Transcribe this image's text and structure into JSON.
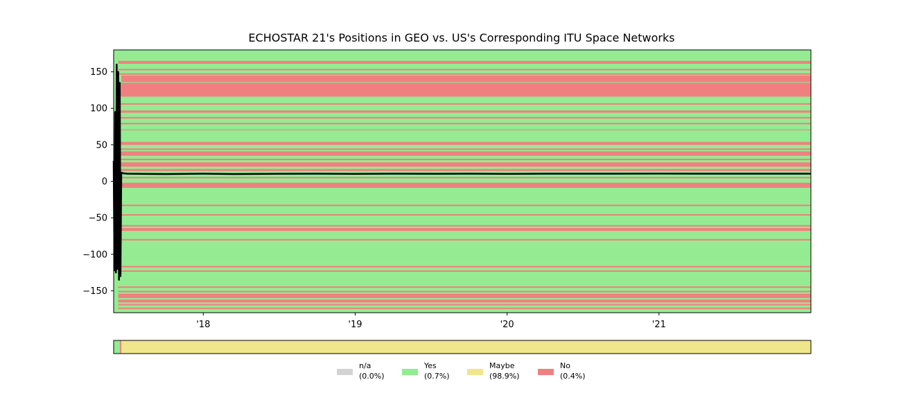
{
  "chart_data": {
    "type": "area",
    "title": "ECHOSTAR 21's Positions in GEO vs. US's Corresponding ITU Space Networks",
    "xlabel": "",
    "ylabel": "",
    "xlim": [
      2017.41,
      2022.0
    ],
    "ylim": [
      -180,
      180
    ],
    "x_ticks": [
      {
        "value": 2018,
        "label": "'18"
      },
      {
        "value": 2019,
        "label": "'19"
      },
      {
        "value": 2020,
        "label": "'20"
      },
      {
        "value": 2021,
        "label": "'21"
      }
    ],
    "y_ticks": [
      {
        "value": 150,
        "label": "150"
      },
      {
        "value": 100,
        "label": "100"
      },
      {
        "value": 50,
        "label": "50"
      },
      {
        "value": 0,
        "label": "0"
      },
      {
        "value": -50,
        "label": "−50"
      },
      {
        "value": -100,
        "label": "−100"
      },
      {
        "value": -150,
        "label": "−150"
      }
    ],
    "colors": {
      "na": "#d3d3d3",
      "yes": "#90ee90",
      "maybe": "#f0e68c",
      "no": "#f08080",
      "position_line": "#000000"
    },
    "background_status": "yes",
    "longitude_bands_no": [
      {
        "lon": [
          161,
          165
        ]
      },
      {
        "lon": [
          152,
          154
        ]
      },
      {
        "lon": [
          146,
          148
        ]
      },
      {
        "lon": [
          136,
          145
        ],
        "x_start": 2017.46
      },
      {
        "lon": [
          116,
          135
        ]
      },
      {
        "lon": [
          105,
          107
        ]
      },
      {
        "lon": [
          94,
          97
        ]
      },
      {
        "lon": [
          86,
          88
        ]
      },
      {
        "lon": [
          78,
          80
        ]
      },
      {
        "lon": [
          70,
          71
        ]
      },
      {
        "lon": [
          50,
          54
        ]
      },
      {
        "lon": [
          43,
          45
        ]
      },
      {
        "lon": [
          35,
          41
        ]
      },
      {
        "lon": [
          29,
          31
        ]
      },
      {
        "lon": [
          20,
          26
        ]
      },
      {
        "lon": [
          14,
          17
        ]
      },
      {
        "lon": [
          4,
          6
        ]
      },
      {
        "lon": [
          -9,
          -2
        ]
      },
      {
        "lon": [
          -34,
          -32
        ]
      },
      {
        "lon": [
          -47,
          -45
        ]
      },
      {
        "lon": [
          -62,
          -60
        ]
      },
      {
        "lon": [
          -68,
          -64
        ]
      },
      {
        "lon": [
          -81,
          -79
        ]
      },
      {
        "lon": [
          -118,
          -116
        ]
      },
      {
        "lon": [
          -124,
          -122
        ]
      },
      {
        "lon": [
          -146,
          -144
        ]
      },
      {
        "lon": [
          -152,
          -150
        ]
      },
      {
        "lon": [
          -160,
          -154
        ]
      },
      {
        "lon": [
          -166,
          -162
        ]
      },
      {
        "lon": [
          -170,
          -168
        ]
      },
      {
        "lon": [
          -175,
          -173
        ]
      }
    ],
    "position_series": {
      "name": "",
      "x": [
        2017.41,
        2017.415,
        2017.42,
        2017.425,
        2017.43,
        2017.435,
        2017.44,
        2017.445,
        2017.45,
        2017.455,
        2017.46,
        2017.47,
        2017.5,
        2017.6,
        2017.75,
        2018.0,
        2018.2,
        2018.5,
        2018.75,
        2019.0,
        2019.25,
        2019.5,
        2019.75,
        2020.0,
        2020.25,
        2020.5,
        2020.75,
        2021.0,
        2021.25,
        2021.5,
        2021.75,
        2022.0
      ],
      "y": [
        28,
        -122,
        95,
        -125,
        160,
        -120,
        150,
        -135,
        135,
        -130,
        12,
        11,
        10.5,
        10.2,
        10.0,
        10.5,
        10.0,
        10.3,
        10.5,
        10.2,
        10.5,
        10.3,
        10.5,
        10.2,
        10.4,
        10.5,
        10.5,
        10.6,
        10.5,
        10.5,
        10.5,
        10.5
      ]
    },
    "status_timeline": [
      {
        "status": "yes",
        "x": [
          2017.41,
          2017.45
        ]
      },
      {
        "status": "no",
        "x": [
          2017.45,
          2017.46
        ]
      },
      {
        "status": "maybe",
        "x": [
          2017.46,
          2022.0
        ]
      }
    ],
    "legend": [
      {
        "key": "na",
        "label": "n/a",
        "percent": "(0.0%)"
      },
      {
        "key": "yes",
        "label": "Yes",
        "percent": "(0.7%)"
      },
      {
        "key": "maybe",
        "label": "Maybe",
        "percent": "(98.9%)"
      },
      {
        "key": "no",
        "label": "No",
        "percent": "(0.4%)"
      }
    ],
    "legend_position": "bottom-center",
    "grid": false
  }
}
